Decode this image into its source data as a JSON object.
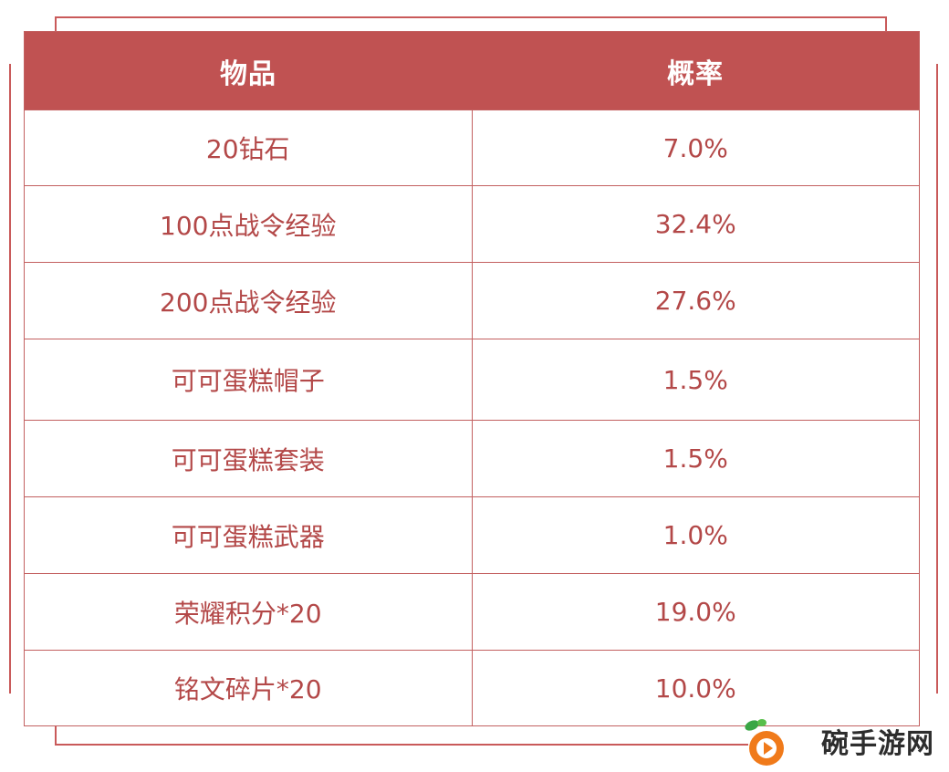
{
  "table": {
    "headers": [
      "物品",
      "概率"
    ],
    "rows": [
      {
        "item": "20钻石",
        "prob": "7.0%"
      },
      {
        "item": "100点战令经验",
        "prob": "32.4%"
      },
      {
        "item": "200点战令经验",
        "prob": "27.6%"
      },
      {
        "item": "可可蛋糕帽子",
        "prob": "1.5%"
      },
      {
        "item": "可可蛋糕套装",
        "prob": "1.5%"
      },
      {
        "item": "可可蛋糕武器",
        "prob": "1.0%"
      },
      {
        "item": "荣耀积分*20",
        "prob": "19.0%"
      },
      {
        "item": "铭文碎片*20",
        "prob": "10.0%"
      }
    ]
  },
  "watermark": {
    "text": "碗手游网"
  },
  "colors": {
    "header_bg": "#c05252",
    "text": "#b34848",
    "border": "#c36060"
  }
}
